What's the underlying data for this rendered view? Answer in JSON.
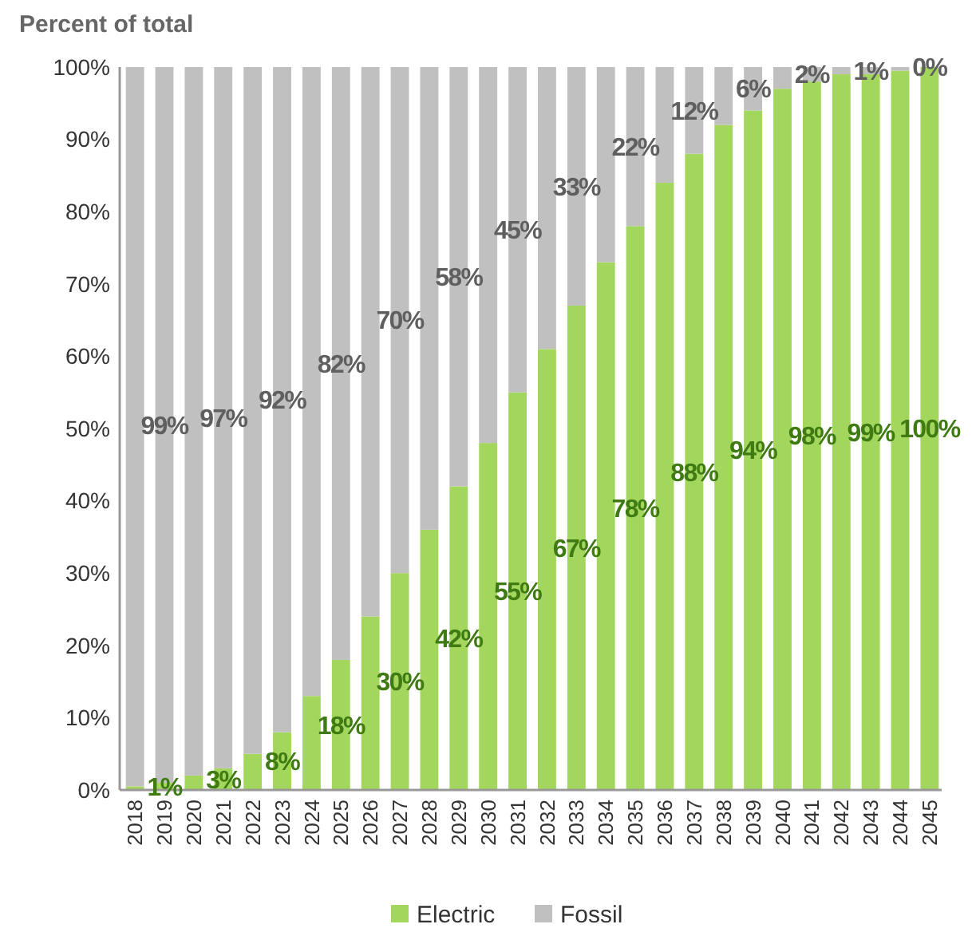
{
  "chart_data": {
    "type": "bar",
    "title": "Percent of total",
    "stacked": true,
    "legend": "bottom",
    "categories": [
      "2018",
      "2019",
      "2020",
      "2021",
      "2022",
      "2023",
      "2024",
      "2025",
      "2026",
      "2027",
      "2028",
      "2029",
      "2030",
      "2031",
      "2032",
      "2033",
      "2034",
      "2035",
      "2036",
      "2037",
      "2038",
      "2039",
      "2040",
      "2041",
      "2042",
      "2043",
      "2044",
      "2045"
    ],
    "series": [
      {
        "name": "Electric",
        "color": "#a3d65c",
        "values": [
          0.5,
          1,
          2,
          3,
          5,
          8,
          13,
          18,
          24,
          30,
          36,
          42,
          48,
          55,
          61,
          67,
          73,
          78,
          84,
          88,
          92,
          94,
          97,
          98,
          99,
          99,
          99.5,
          100
        ],
        "value_labels": [
          null,
          "1%",
          null,
          "3%",
          null,
          "8%",
          null,
          "18%",
          null,
          "30%",
          null,
          "42%",
          null,
          "55%",
          null,
          "67%",
          null,
          "78%",
          null,
          "88%",
          null,
          "94%",
          null,
          "98%",
          null,
          "99%",
          null,
          "100%"
        ]
      },
      {
        "name": "Fossil",
        "color": "#c0c0c0",
        "values": [
          99.5,
          99,
          98,
          97,
          95,
          92,
          87,
          82,
          76,
          70,
          64,
          58,
          52,
          45,
          39,
          33,
          27,
          22,
          16,
          12,
          8,
          6,
          3,
          2,
          1,
          1,
          0.5,
          0
        ],
        "value_labels": [
          null,
          "99%",
          null,
          "97%",
          null,
          "92%",
          null,
          "82%",
          null,
          "70%",
          null,
          "58%",
          null,
          "45%",
          null,
          "33%",
          null,
          "22%",
          null,
          "12%",
          null,
          "6%",
          null,
          "2%",
          null,
          "1%",
          null,
          "0%"
        ]
      }
    ],
    "ylim": [
      0,
      100
    ],
    "yticks": [
      {
        "value": 0,
        "label": "0%"
      },
      {
        "value": 10,
        "label": "10%"
      },
      {
        "value": 20,
        "label": "20%"
      },
      {
        "value": 30,
        "label": "30%"
      },
      {
        "value": 40,
        "label": "40%"
      },
      {
        "value": 50,
        "label": "50%"
      },
      {
        "value": 60,
        "label": "60%"
      },
      {
        "value": 70,
        "label": "70%"
      },
      {
        "value": 80,
        "label": "80%"
      },
      {
        "value": 90,
        "label": "90%"
      },
      {
        "value": 100,
        "label": "100%"
      }
    ]
  }
}
